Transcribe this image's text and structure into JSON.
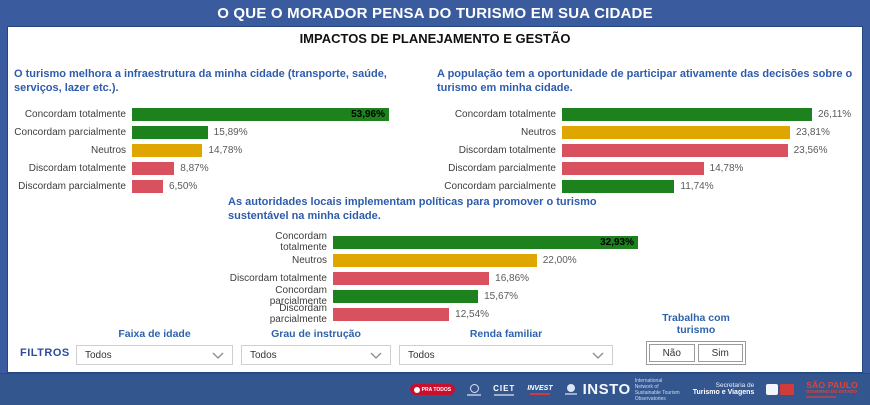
{
  "header": {
    "title": "O QUE O MORADOR PENSA DO TURISMO EM SUA CIDADE"
  },
  "subtitle": "IMPACTOS DE PLANEJAMENTO E GESTÃO",
  "colors": {
    "green": "#1d821d",
    "yellow": "#dfa600",
    "red": "#d9515f",
    "frame_blue": "#3a5c9e",
    "title_blue": "#2e5cac"
  },
  "chart_data": [
    {
      "type": "bar",
      "orientation": "horizontal",
      "title": "O turismo melhora a infraestrutura da minha cidade (transporte, saúde, serviços, lazer etc.).",
      "categories": [
        "Concordam totalmente",
        "Concordam parcialmente",
        "Neutros",
        "Discordam totalmente",
        "Discordam parcialmente"
      ],
      "values": [
        53.96,
        15.89,
        14.78,
        8.87,
        6.5
      ],
      "value_labels": [
        "53,96%",
        "15,89%",
        "14,78%",
        "8,87%",
        "6,50%"
      ],
      "colors": [
        "green",
        "green",
        "yellow",
        "red",
        "red"
      ],
      "value_inside": [
        true,
        false,
        false,
        false,
        false
      ],
      "xlim": [
        0,
        53.96
      ],
      "grid": false,
      "legend": "none"
    },
    {
      "type": "bar",
      "orientation": "horizontal",
      "title": "A população tem a oportunidade de participar ativamente das decisões sobre o turismo em minha cidade.",
      "categories": [
        "Concordam totalmente",
        "Neutros",
        "Discordam totalmente",
        "Discordam parcialmente",
        "Concordam parcialmente"
      ],
      "values": [
        26.11,
        23.81,
        23.56,
        14.78,
        11.74
      ],
      "value_labels": [
        "26,11%",
        "23,81%",
        "23,56%",
        "14,78%",
        "11,74%"
      ],
      "colors": [
        "green",
        "yellow",
        "red",
        "red",
        "green"
      ],
      "value_inside": [
        false,
        false,
        false,
        false,
        false
      ],
      "xlim": [
        0,
        26.11
      ],
      "grid": false,
      "legend": "none"
    },
    {
      "type": "bar",
      "orientation": "horizontal",
      "title": "As autoridades locais implementam políticas para promover o turismo sustentável na minha cidade.",
      "categories": [
        "Concordam totalmente",
        "Neutros",
        "Discordam totalmente",
        "Concordam parcialmente",
        "Discordam parcialmente"
      ],
      "values": [
        32.93,
        22.0,
        16.86,
        15.67,
        12.54
      ],
      "value_labels": [
        "32,93%",
        "22,00%",
        "16,86%",
        "15,67%",
        "12,54%"
      ],
      "colors": [
        "green",
        "yellow",
        "red",
        "green",
        "red"
      ],
      "value_inside": [
        true,
        false,
        false,
        false,
        false
      ],
      "xlim": [
        0,
        32.93
      ],
      "grid": false,
      "legend": "none"
    }
  ],
  "filters": {
    "section_label": "FILTROS",
    "dropdowns": [
      {
        "label": "Faixa de idade",
        "value": "Todos"
      },
      {
        "label": "Grau de instrução",
        "value": "Todos"
      },
      {
        "label": "Renda familiar",
        "value": "Todos"
      }
    ],
    "toggle": {
      "label": "Trabalha com turismo",
      "options": [
        "Não",
        "Sim"
      ]
    }
  },
  "footer": {
    "logos": {
      "pra_todos": "PRA TODOS",
      "ciet": "CIET",
      "invest": "INVEST",
      "insto": "INSTO",
      "insto_caption": "International Network of Sustainable Tourism Observatories",
      "secretaria_line1": "Secretaria de",
      "secretaria_line2": "Turismo e Viagens",
      "sao_paulo": "SÃO PAULO",
      "governo": "GOVERNO DO ESTADO"
    }
  }
}
